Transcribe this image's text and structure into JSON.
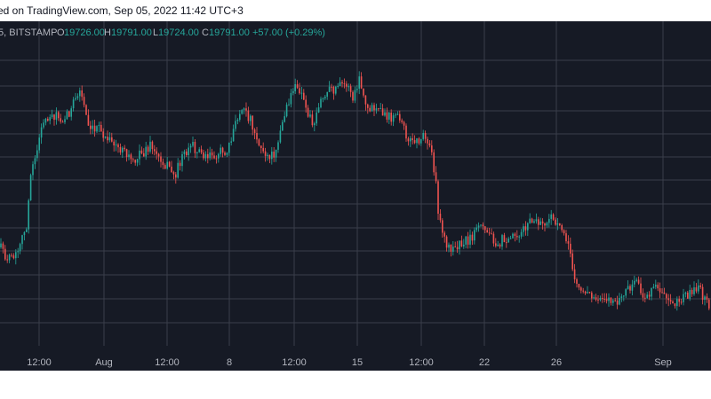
{
  "header": {
    "text": "ed on TradingView.com, Sep 05, 2022 11:42 UTC+3"
  },
  "legend": {
    "symbol": "5, BITSTAMP",
    "o_label": "O",
    "o_value": "19726.00",
    "h_label": "H",
    "h_value": "19791.00",
    "l_label": "L",
    "l_value": "19724.00",
    "c_label": "C",
    "c_value": "19791.00",
    "change": "+57.00 (+0.29%)"
  },
  "colors": {
    "background": "#161a25",
    "grid": "#3a3e4a",
    "up": "#26a69a",
    "down": "#ef5350",
    "text": "#b2b5be",
    "legend_value": "#26a69a"
  },
  "chart_data": {
    "type": "candlestick",
    "grid": true,
    "x_tick_labels": [
      "12:00",
      "Aug",
      "12:00",
      "8",
      "12:00",
      "15",
      "12:00",
      "22",
      "26",
      "Sep"
    ],
    "y_range": [
      19500,
      24700
    ],
    "series_anchors": {
      "x": [
        "12:00",
        "Aug",
        "12:00",
        "8",
        "12:00",
        "15",
        "12:00",
        "22",
        "26",
        "Sep"
      ],
      "approx_close": [
        22800,
        23900,
        23200,
        23400,
        24300,
        24000,
        23100,
        21500,
        21600,
        20000
      ]
    }
  }
}
